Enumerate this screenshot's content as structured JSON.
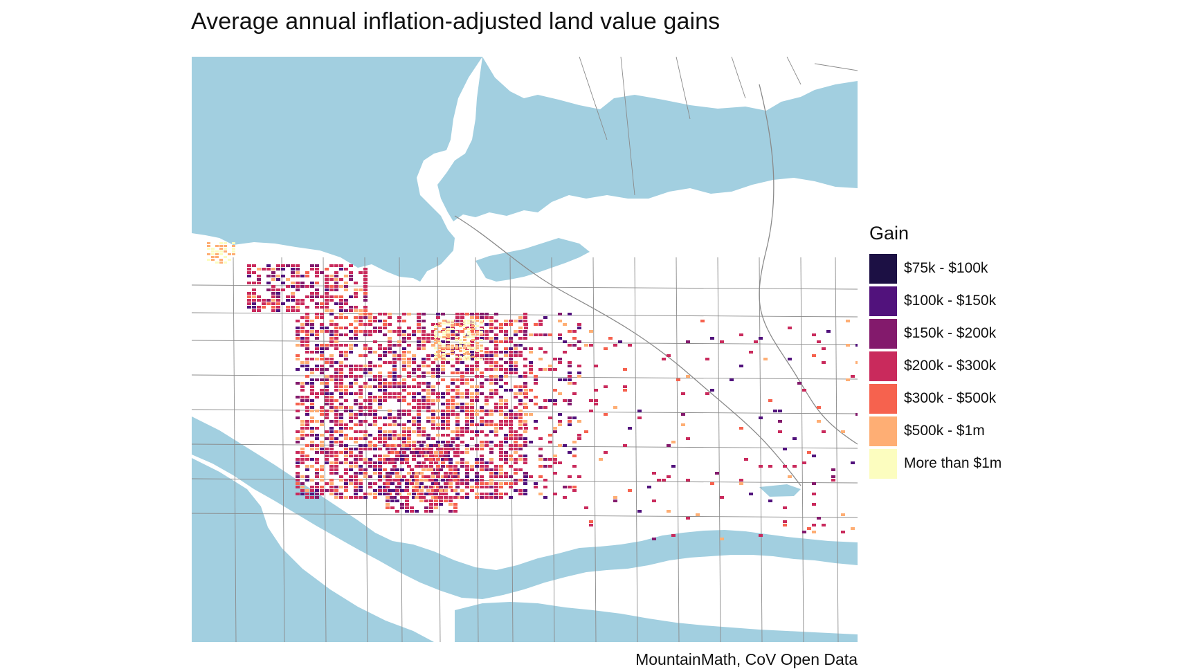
{
  "title": "Average annual inflation-adjusted land value gains",
  "caption": "MountainMath, CoV Open Data",
  "legend": {
    "title": "Gain",
    "items": [
      {
        "label": "$75k - $100k",
        "color": "#1c1044"
      },
      {
        "label": "$100k - $150k",
        "color": "#51127c"
      },
      {
        "label": "$150k - $200k",
        "color": "#831a6c"
      },
      {
        "label": "$200k - $300k",
        "color": "#c92a5c"
      },
      {
        "label": "$300k - $500k",
        "color": "#f6624e"
      },
      {
        "label": "$500k - $1m",
        "color": "#feae74"
      },
      {
        "label": "More than $1m",
        "color": "#fcfdbf"
      }
    ]
  },
  "colors": {
    "water": "#a2cfe0",
    "road": "#888888",
    "land": "#ffffff"
  }
}
